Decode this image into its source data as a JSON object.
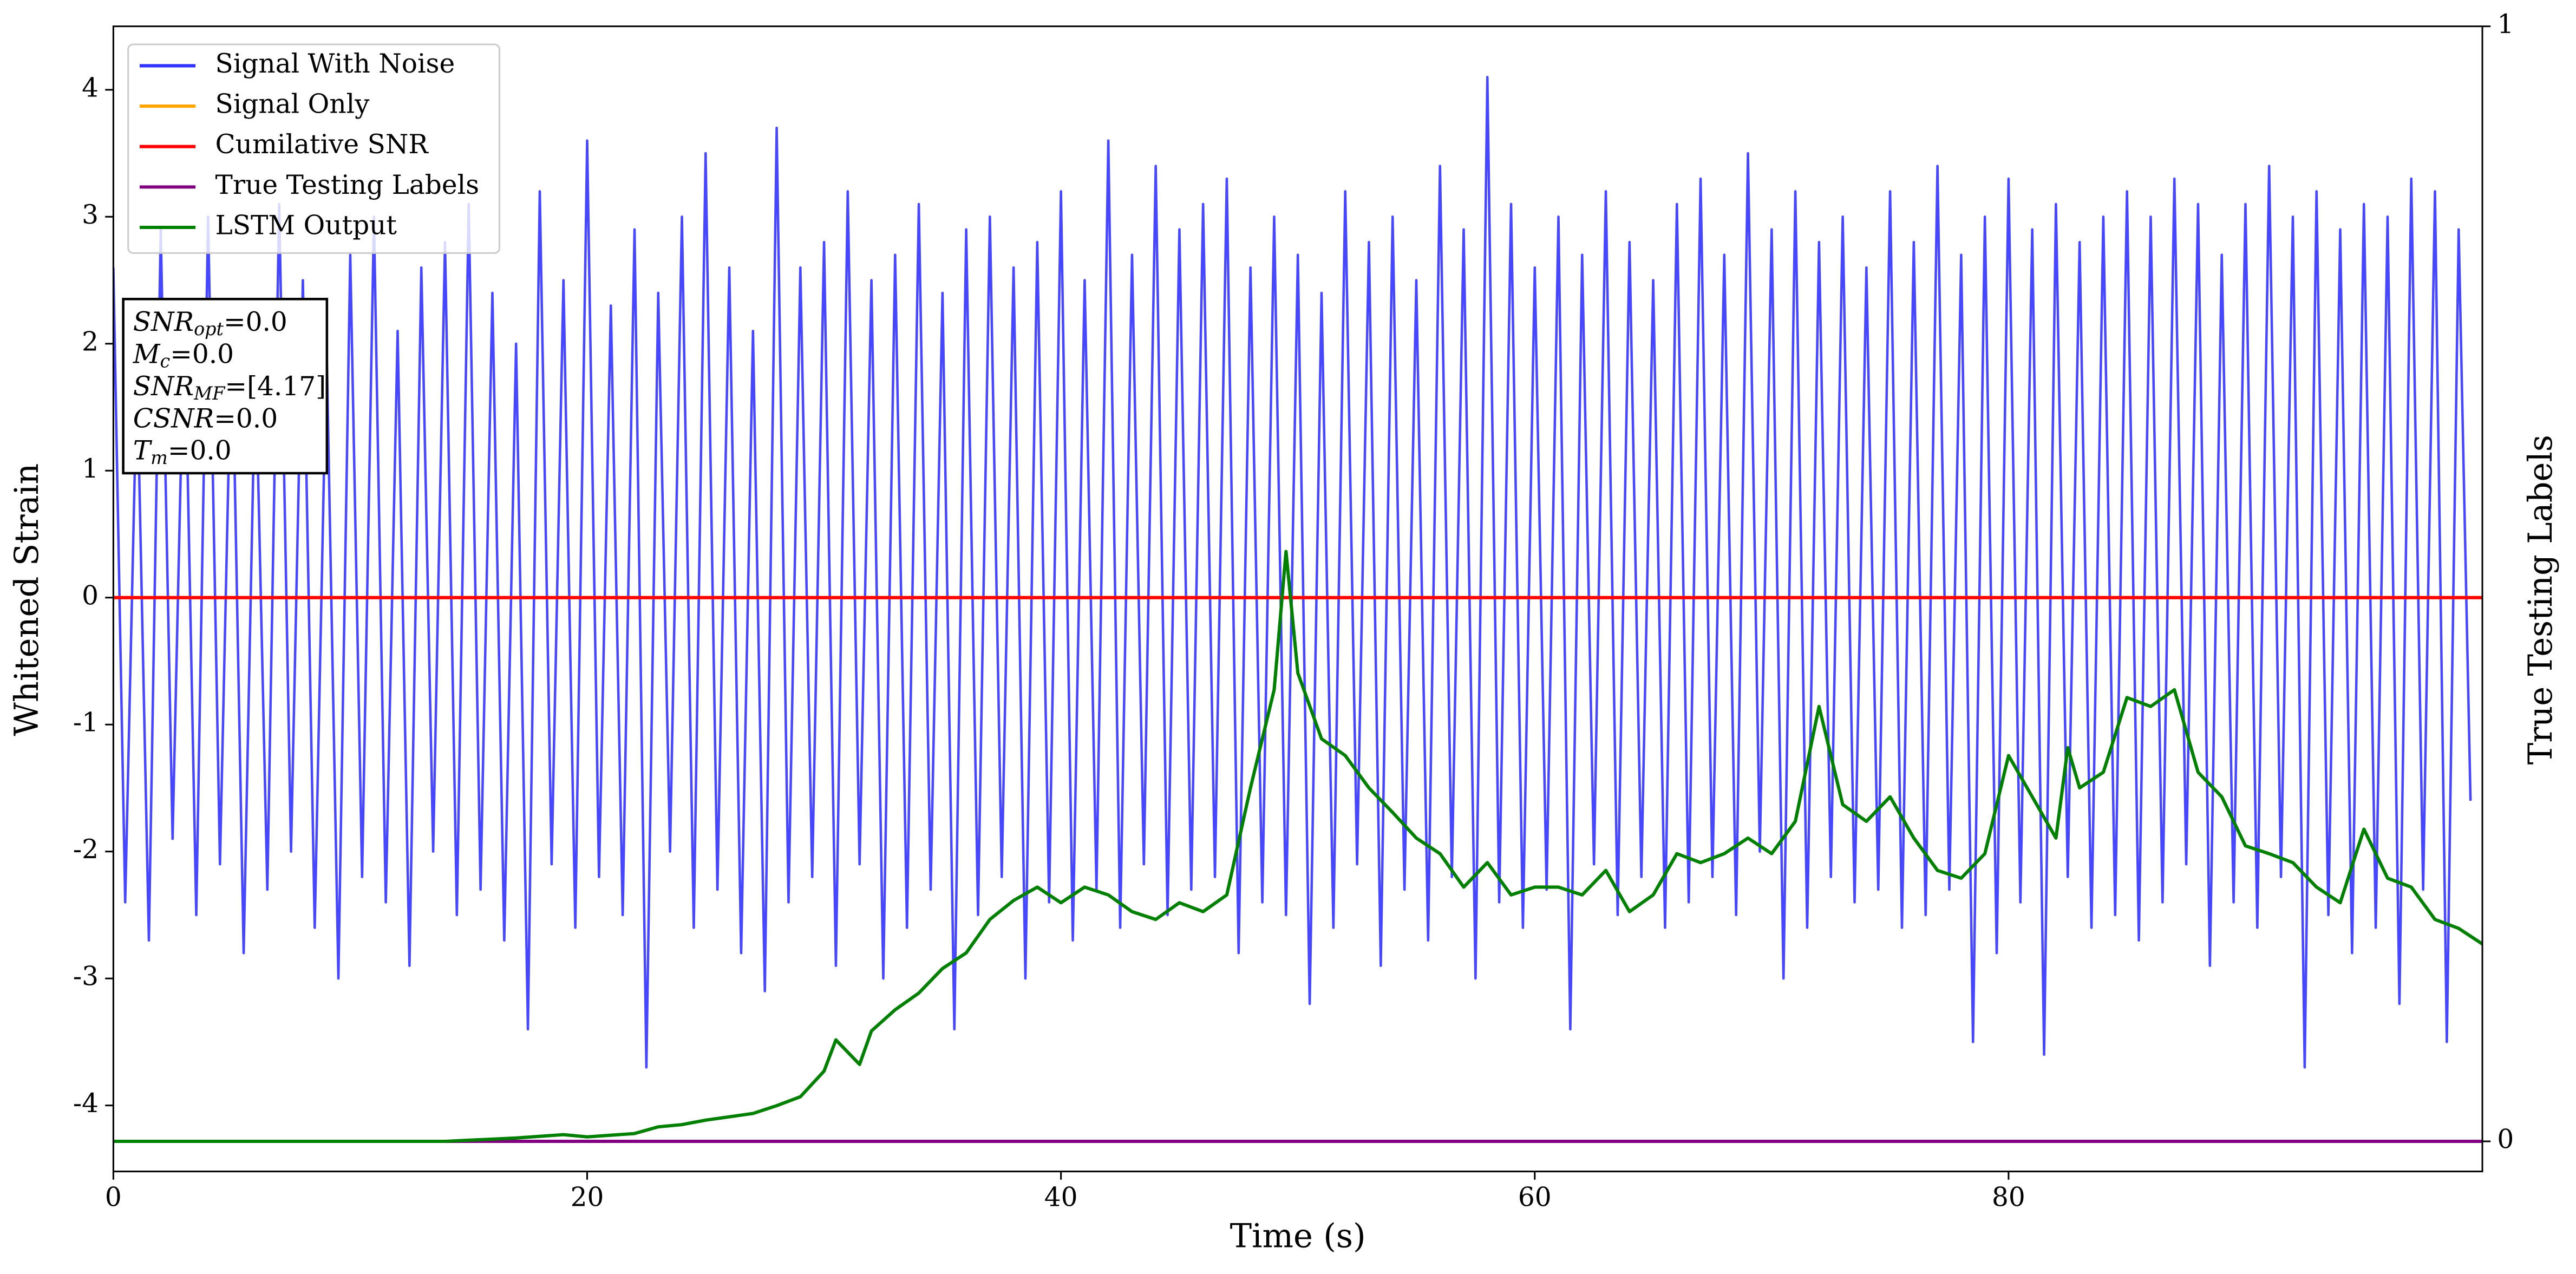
{
  "chart_data": {
    "type": "line",
    "xlabel": "Time (s)",
    "ylabel": "Whitened Strain",
    "y2label": "True Testing Labels",
    "xlim": [
      0,
      100
    ],
    "xticks": [
      0,
      20,
      40,
      60,
      80
    ],
    "ylim": [
      -4.52,
      4.5
    ],
    "yticks": [
      -4,
      -3,
      -2,
      -1,
      0,
      1,
      2,
      3,
      4
    ],
    "y2lim": [
      -0.027,
      1
    ],
    "y2ticks": [
      0,
      1
    ],
    "legend": "upper left",
    "series": [
      {
        "name": "Signal With Noise",
        "color": "#3333ff",
        "x": [
          0,
          0.5,
          1,
          1.5,
          2,
          2.5,
          3,
          3.5,
          4,
          4.5,
          5,
          5.5,
          6,
          6.5,
          7,
          7.5,
          8,
          8.5,
          9,
          9.5,
          10,
          10.5,
          11,
          11.5,
          12,
          12.5,
          13,
          13.5,
          14,
          14.5,
          15,
          15.5,
          16,
          16.5,
          17,
          17.5,
          18,
          18.5,
          19,
          19.5,
          20,
          20.5,
          21,
          21.5,
          22,
          22.5,
          23,
          23.5,
          24,
          24.5,
          25,
          25.5,
          26,
          26.5,
          27,
          27.5,
          28,
          28.5,
          29,
          29.5,
          30,
          30.5,
          31,
          31.5,
          32,
          32.5,
          33,
          33.5,
          34,
          34.5,
          35,
          35.5,
          36,
          36.5,
          37,
          37.5,
          38,
          38.5,
          39,
          39.5,
          40,
          40.5,
          41,
          41.5,
          42,
          42.5,
          43,
          43.5,
          44,
          44.5,
          45,
          45.5,
          46,
          46.5,
          47,
          47.5,
          48,
          48.5,
          49,
          49.5,
          50,
          50.5,
          51,
          51.5,
          52,
          52.5,
          53,
          53.5,
          54,
          54.5,
          55,
          55.5,
          56,
          56.5,
          57,
          57.5,
          58,
          58.5,
          59,
          59.5,
          60,
          60.5,
          61,
          61.5,
          62,
          62.5,
          63,
          63.5,
          64,
          64.5,
          65,
          65.5,
          66,
          66.5,
          67,
          67.5,
          68,
          68.5,
          69,
          69.5,
          70,
          70.5,
          71,
          71.5,
          72,
          72.5,
          73,
          73.5,
          74,
          74.5,
          75,
          75.5,
          76,
          76.5,
          77,
          77.5,
          78,
          78.5,
          79,
          79.5,
          80,
          80.5,
          81,
          81.5,
          82,
          82.5,
          83,
          83.5,
          84,
          84.5,
          85,
          85.5,
          86,
          86.5,
          87,
          87.5,
          88,
          88.5,
          89,
          89.5,
          90,
          90.5,
          91,
          91.5,
          92,
          92.5,
          93,
          93.5,
          94,
          94.5,
          95,
          95.5,
          96,
          96.5,
          97,
          97.5,
          98,
          98.5,
          99,
          99.5
        ],
        "values": [
          2.6,
          -2.4,
          1.8,
          -2.7,
          2.9,
          -1.9,
          2.3,
          -2.5,
          3.0,
          -2.1,
          2.2,
          -2.8,
          1.9,
          -2.3,
          3.1,
          -2.0,
          2.5,
          -2.6,
          2.0,
          -3.0,
          2.7,
          -2.2,
          3.0,
          -2.4,
          2.1,
          -2.9,
          2.6,
          -2.0,
          2.8,
          -2.5,
          3.1,
          -2.3,
          2.4,
          -2.7,
          2.0,
          -3.4,
          3.2,
          -2.1,
          2.5,
          -2.6,
          3.6,
          -2.2,
          2.3,
          -2.5,
          2.9,
          -3.7,
          2.4,
          -2.0,
          3.0,
          -2.6,
          3.5,
          -2.3,
          2.6,
          -2.8,
          2.1,
          -3.1,
          3.7,
          -2.4,
          2.6,
          -2.2,
          2.8,
          -2.9,
          3.2,
          -2.1,
          2.5,
          -3.0,
          2.7,
          -2.6,
          3.1,
          -2.3,
          2.4,
          -3.4,
          2.9,
          -2.5,
          3.0,
          -2.2,
          2.6,
          -3.0,
          2.8,
          -2.4,
          3.2,
          -2.7,
          2.5,
          -2.3,
          3.6,
          -2.6,
          2.7,
          -2.1,
          3.4,
          -2.5,
          2.9,
          -2.3,
          3.1,
          -2.2,
          3.3,
          -2.8,
          2.6,
          -2.4,
          3.0,
          -2.5,
          2.7,
          -3.2,
          2.4,
          -2.6,
          3.2,
          -2.1,
          2.8,
          -2.9,
          3.0,
          -2.3,
          2.5,
          -2.7,
          3.4,
          -2.2,
          2.9,
          -3.0,
          4.1,
          -2.4,
          3.1,
          -2.6,
          2.6,
          -2.3,
          3.0,
          -3.4,
          2.7,
          -2.1,
          3.2,
          -2.5,
          2.8,
          -2.2,
          2.5,
          -2.6,
          3.1,
          -2.4,
          3.3,
          -2.2,
          2.7,
          -2.5,
          3.5,
          -2.0,
          2.9,
          -3.0,
          3.2,
          -2.6,
          2.8,
          -2.2,
          3.0,
          -2.4,
          2.6,
          -2.3,
          3.2,
          -2.6,
          2.8,
          -2.5,
          3.4,
          -2.3,
          2.7,
          -3.5,
          3.0,
          -2.8,
          3.3,
          -2.4,
          2.9,
          -3.6,
          3.1,
          -2.2,
          2.8,
          -2.6,
          3.0,
          -2.5,
          3.2,
          -2.7,
          3.0,
          -2.4,
          3.3,
          -2.1,
          3.1,
          -2.9,
          2.7,
          -2.4,
          3.1,
          -2.6,
          3.4,
          -2.2,
          3.0,
          -3.7,
          3.2,
          -2.5,
          2.9,
          -2.8,
          3.1,
          -2.6,
          3.0,
          -3.2,
          3.3,
          -2.3,
          3.2,
          -3.5,
          2.9,
          -1.6
        ]
      },
      {
        "name": "Signal Only",
        "color": "#ffa500",
        "x": [
          0,
          100
        ],
        "values": [
          0,
          0
        ]
      },
      {
        "name": "Cumilative SNR",
        "color": "#ff0000",
        "x": [
          0,
          100
        ],
        "values": [
          0,
          0
        ]
      },
      {
        "name": "True Testing Labels",
        "color": "#800080",
        "axis": "y2",
        "x": [
          0,
          100
        ],
        "values": [
          0,
          0
        ]
      },
      {
        "name": "LSTM Output",
        "color": "#008000",
        "axis": "y2",
        "x": [
          0,
          14,
          15,
          17,
          19,
          20,
          22,
          23,
          24,
          25,
          27,
          28,
          29,
          30,
          30.5,
          31.5,
          32,
          33,
          34,
          35,
          36,
          37,
          38,
          39,
          40,
          41,
          42,
          43,
          44,
          45,
          46,
          47,
          48,
          49,
          49.5,
          50,
          51,
          52,
          53,
          54,
          55,
          56,
          57,
          58,
          59,
          60,
          61,
          62,
          63,
          64,
          65,
          66,
          67,
          68,
          69,
          70,
          71,
          72,
          73,
          74,
          75,
          76,
          77,
          78,
          79,
          80,
          81,
          82,
          82.5,
          83,
          84,
          85,
          86,
          87,
          88,
          89,
          90,
          91,
          92,
          93,
          94,
          95,
          96,
          97,
          98,
          99,
          100
        ],
        "values": [
          0,
          0,
          0.001,
          0.003,
          0.006,
          0.004,
          0.007,
          0.013,
          0.015,
          0.019,
          0.025,
          0.032,
          0.04,
          0.063,
          0.091,
          0.069,
          0.099,
          0.118,
          0.133,
          0.155,
          0.169,
          0.199,
          0.216,
          0.228,
          0.214,
          0.228,
          0.221,
          0.206,
          0.199,
          0.214,
          0.206,
          0.221,
          0.317,
          0.405,
          0.529,
          0.42,
          0.361,
          0.346,
          0.317,
          0.295,
          0.272,
          0.258,
          0.228,
          0.25,
          0.221,
          0.228,
          0.228,
          0.221,
          0.243,
          0.206,
          0.221,
          0.258,
          0.25,
          0.258,
          0.272,
          0.258,
          0.287,
          0.39,
          0.302,
          0.287,
          0.309,
          0.272,
          0.243,
          0.236,
          0.258,
          0.346,
          0.309,
          0.272,
          0.353,
          0.317,
          0.331,
          0.398,
          0.39,
          0.405,
          0.331,
          0.309,
          0.265,
          0.258,
          0.25,
          0.228,
          0.214,
          0.28,
          0.236,
          0.228,
          0.199,
          0.191,
          0.177
        ]
      }
    ],
    "annotation": [
      {
        "base": "SNR",
        "sub": "opt",
        "rest": "=0.0"
      },
      {
        "base": "M",
        "sub": "c",
        "rest": "=0.0"
      },
      {
        "base": "SNR",
        "sub": "MF",
        "rest": "=[4.17]"
      },
      {
        "base": "CSNR",
        "sub": "",
        "rest": "=0.0"
      },
      {
        "base": "T",
        "sub": "m",
        "rest": "=0.0"
      }
    ]
  }
}
